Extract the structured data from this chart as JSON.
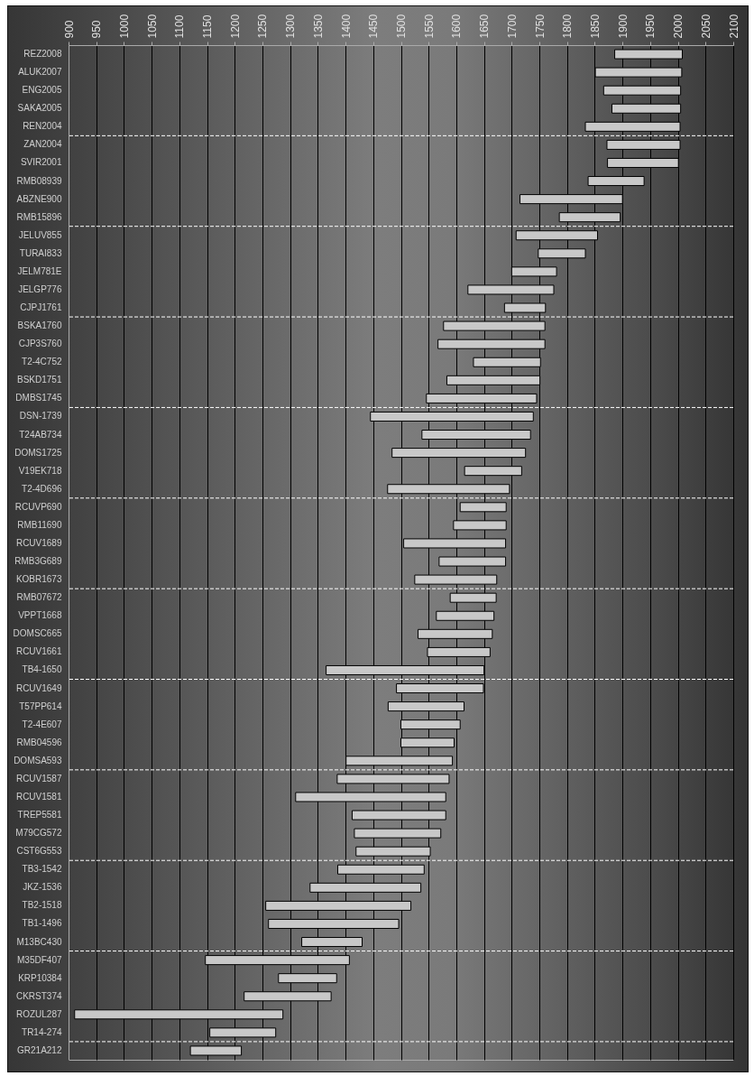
{
  "chart_data": {
    "type": "bar",
    "orientation": "horizontal",
    "grid": "x",
    "color": "#c8c8c8",
    "categories": [
      "REZ2008",
      "ALUK2007",
      "ENG2005",
      "SAKA2005",
      "REN2004",
      "ZAN2004",
      "SVIR2001",
      "RMB08939",
      "ABZNE900",
      "RMB15896",
      "JELUV855",
      "TURAI833",
      "JELM781E",
      "JELGP776",
      "CJPJ1761",
      "BSKA1760",
      "CJP3S760",
      "T2-4C752",
      "BSKD1751",
      "DMBS1745",
      "DSN-1739",
      "T24AB734",
      "DOMS1725",
      "V19EK718",
      "T2-4D696",
      "RCUVP690",
      "RMB11690",
      "RCUV1689",
      "RMB3G689",
      "KOBR1673",
      "RMB07672",
      "VPPT1668",
      "DOMSC665",
      "RCUV1661",
      "TB4-1650",
      "RCUV1649",
      "T57PP614",
      "T2-4E607",
      "RMB04596",
      "DOMSA593",
      "RCUV1587",
      "RCUV1581",
      "TREP5581",
      "M79CG572",
      "CST6G553",
      "TB3-1542",
      "JKZ-1536",
      "TB2-1518",
      "TB1-1496",
      "M13BC430",
      "M35DF407",
      "KRP10384",
      "CKRST374",
      "ROZUL287",
      "TR14-274",
      "GR21A212"
    ],
    "base": [
      1886,
      1851,
      1866,
      1881,
      1833,
      1872,
      1873,
      1838,
      1715,
      1786,
      1708,
      1748,
      1700,
      1621,
      1687,
      1577,
      1567,
      1631,
      1583,
      1546,
      1445,
      1538,
      1484,
      1615,
      1476,
      1607,
      1595,
      1505,
      1569,
      1525,
      1589,
      1564,
      1531,
      1548,
      1365,
      1492,
      1477,
      1500,
      1500,
      1401,
      1385,
      1310,
      1412,
      1416,
      1419,
      1386,
      1336,
      1256,
      1261,
      1321,
      1147,
      1279,
      1217,
      911,
      1155,
      1120
    ],
    "values": [
      122,
      156,
      139,
      124,
      171,
      132,
      128,
      101,
      185,
      110,
      147,
      85,
      81,
      155,
      74,
      183,
      193,
      121,
      168,
      199,
      294,
      196,
      241,
      103,
      220,
      83,
      95,
      184,
      120,
      148,
      83,
      104,
      134,
      113,
      285,
      157,
      137,
      107,
      96,
      192,
      202,
      271,
      169,
      156,
      134,
      156,
      200,
      262,
      235,
      109,
      260,
      105,
      157,
      376,
      119,
      92
    ],
    "xlim": [
      900,
      2100
    ],
    "xticks": [
      900,
      950,
      1000,
      1050,
      1100,
      1150,
      1200,
      1250,
      1300,
      1350,
      1400,
      1450,
      1500,
      1550,
      1600,
      1650,
      1700,
      1750,
      1800,
      1850,
      1900,
      1950,
      2000,
      2050,
      2100
    ],
    "ref_lines": [
      {
        "axis": "y",
        "value": "REN2004",
        "color": "#ffffff",
        "line_style": "dashed"
      },
      {
        "axis": "y",
        "value": "RMB15896",
        "color": "#ffffff",
        "line_style": "dashed"
      },
      {
        "axis": "y",
        "value": "CJPJ1761",
        "color": "#ffffff",
        "line_style": "dashed"
      },
      {
        "axis": "y",
        "value": "DMBS1745",
        "color": "#ffffff",
        "line_style": "dashed"
      },
      {
        "axis": "y",
        "value": "T2-4D696",
        "color": "#ffffff",
        "line_style": "dashed"
      },
      {
        "axis": "y",
        "value": "KOBR1673",
        "color": "#ffffff",
        "line_style": "dashed"
      },
      {
        "axis": "y",
        "value": "TB4-1650",
        "color": "#ffffff",
        "line_style": "dashed"
      },
      {
        "axis": "y",
        "value": "DOMSA593",
        "color": "#ffffff",
        "line_style": "dashed"
      },
      {
        "axis": "y",
        "value": "CST6G553",
        "color": "#ffffff",
        "line_style": "dashed"
      },
      {
        "axis": "y",
        "value": "M13BC430",
        "color": "#ffffff",
        "line_style": "dashed"
      },
      {
        "axis": "y",
        "value": "TR14-274",
        "color": "#ffffff",
        "line_style": "dashed"
      }
    ]
  }
}
